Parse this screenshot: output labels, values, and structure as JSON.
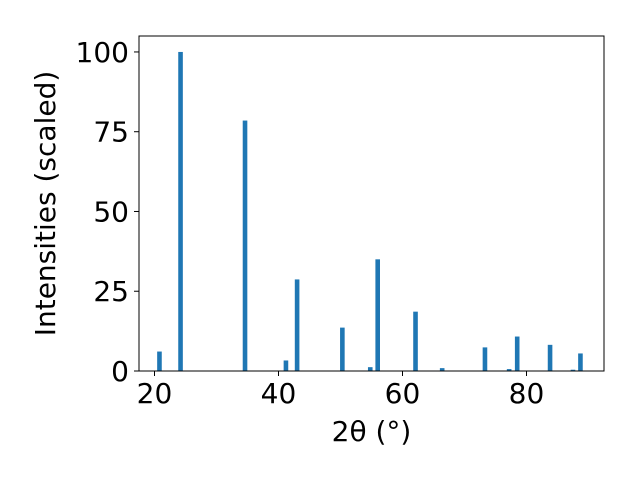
{
  "chart_data": {
    "type": "bar",
    "title": "",
    "xlabel": "2θ (°)",
    "ylabel": "Intensities (scaled)",
    "xlim": [
      17.5,
      92.5
    ],
    "ylim": [
      0,
      105
    ],
    "xticks": [
      20,
      40,
      60,
      80
    ],
    "yticks": [
      0,
      25,
      50,
      75,
      100
    ],
    "grid": false,
    "legend": "none",
    "bar_color": "#1f77b4",
    "points": [
      {
        "x": 20.8,
        "y": 6.1
      },
      {
        "x": 24.2,
        "y": 100.0
      },
      {
        "x": 34.6,
        "y": 78.5
      },
      {
        "x": 41.2,
        "y": 3.3
      },
      {
        "x": 43.0,
        "y": 28.7
      },
      {
        "x": 50.3,
        "y": 13.6
      },
      {
        "x": 54.8,
        "y": 1.2
      },
      {
        "x": 56.0,
        "y": 35.0
      },
      {
        "x": 62.1,
        "y": 18.6
      },
      {
        "x": 66.4,
        "y": 0.9
      },
      {
        "x": 73.3,
        "y": 7.4
      },
      {
        "x": 77.2,
        "y": 0.6
      },
      {
        "x": 78.5,
        "y": 10.8
      },
      {
        "x": 83.8,
        "y": 8.2
      },
      {
        "x": 87.5,
        "y": 0.4
      },
      {
        "x": 88.7,
        "y": 5.5
      }
    ]
  }
}
